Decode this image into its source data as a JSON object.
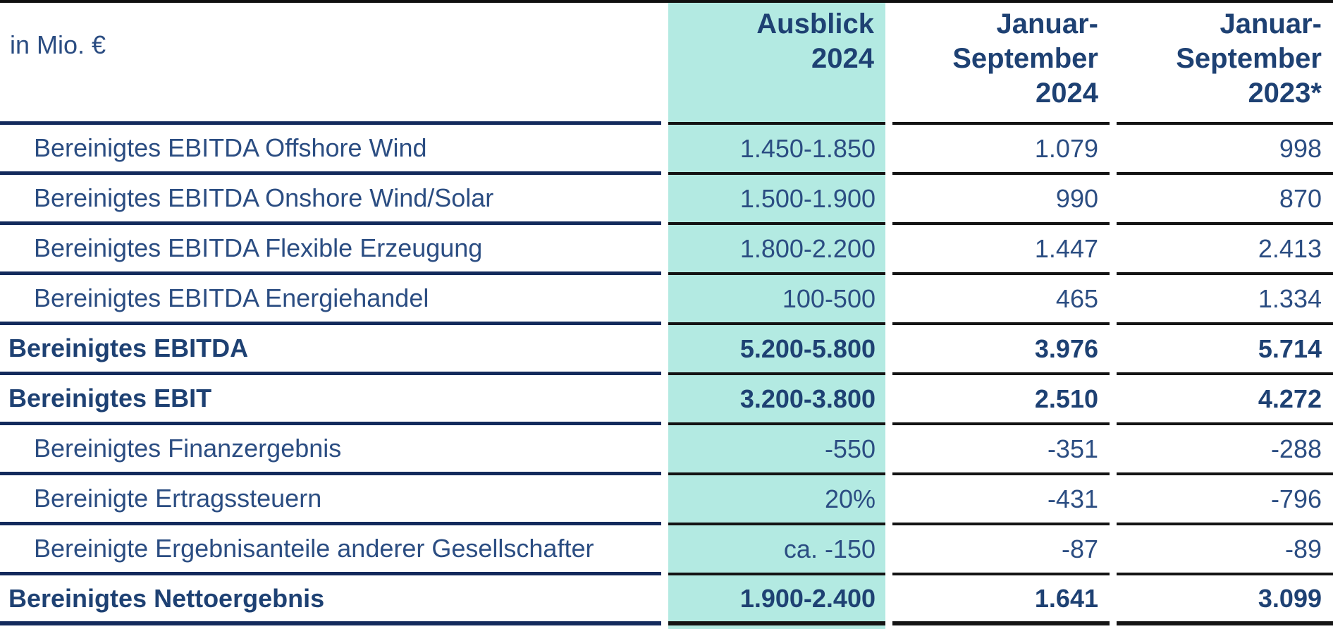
{
  "table_title_context": "Financial results overview table",
  "colors": {
    "highlight_teal": "#b3eae2",
    "text_navy": "#2b4d82",
    "text_navy_bold": "#1e4173",
    "line_navy_label_column": "#132a5c",
    "line_black_value_columns": "#141414",
    "background": "#ffffff"
  },
  "header": {
    "unit_label": "in Mio. €",
    "col_outlook": "Ausblick 2024",
    "col_period_current": "Januar-September 2024",
    "col_period_prior": "Januar-September 2023*"
  },
  "rows": [
    {
      "label": "Bereinigtes EBITDA Offshore Wind",
      "ausblick": "1.450-1.850",
      "jan_sep_2024": "1.079",
      "jan_sep_2023": "998",
      "emphasis": false
    },
    {
      "label": "Bereinigtes EBITDA Onshore Wind/Solar",
      "ausblick": "1.500-1.900",
      "jan_sep_2024": "990",
      "jan_sep_2023": "870",
      "emphasis": false
    },
    {
      "label": "Bereinigtes EBITDA Flexible Erzeugung",
      "ausblick": "1.800-2.200",
      "jan_sep_2024": "1.447",
      "jan_sep_2023": "2.413",
      "emphasis": false
    },
    {
      "label": "Bereinigtes EBITDA Energiehandel",
      "ausblick": "100-500",
      "jan_sep_2024": "465",
      "jan_sep_2023": "1.334",
      "emphasis": false
    },
    {
      "label": "Bereinigtes EBITDA",
      "ausblick": "5.200-5.800",
      "jan_sep_2024": "3.976",
      "jan_sep_2023": "5.714",
      "emphasis": true
    },
    {
      "label": "Bereinigtes EBIT",
      "ausblick": "3.200-3.800",
      "jan_sep_2024": "2.510",
      "jan_sep_2023": "4.272",
      "emphasis": true
    },
    {
      "label": "Bereinigtes Finanzergebnis",
      "ausblick": "-550",
      "jan_sep_2024": "-351",
      "jan_sep_2023": "-288",
      "emphasis": false
    },
    {
      "label": "Bereinigte Ertragssteuern",
      "ausblick": "20%",
      "jan_sep_2024": "-431",
      "jan_sep_2023": "-796",
      "emphasis": false
    },
    {
      "label": "Bereinigte Ergebnisanteile anderer Gesellschafter",
      "ausblick": "ca. -150",
      "jan_sep_2024": "-87",
      "jan_sep_2023": "-89",
      "emphasis": false
    },
    {
      "label": "Bereinigtes Nettoergebnis",
      "ausblick": "1.900-2.400",
      "jan_sep_2024": "1.641",
      "jan_sep_2023": "3.099",
      "emphasis": true
    }
  ]
}
